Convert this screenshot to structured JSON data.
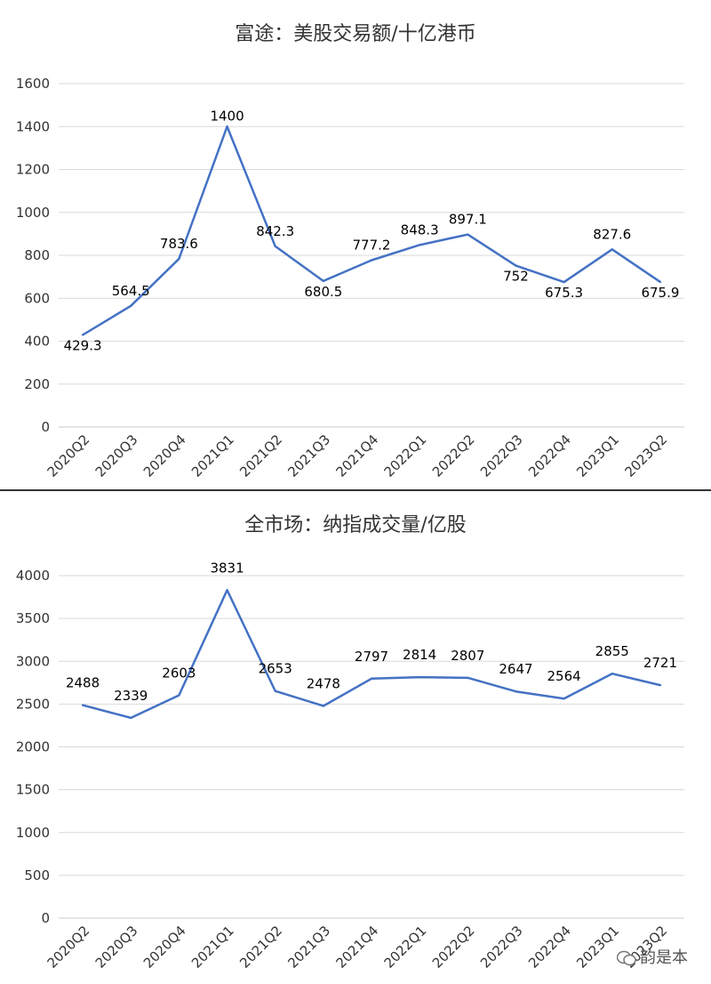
{
  "chart_data": [
    {
      "type": "line",
      "title": "富途：美股交易额/十亿港币",
      "categories": [
        "2020Q2",
        "2020Q3",
        "2020Q4",
        "2021Q1",
        "2021Q2",
        "2021Q3",
        "2021Q4",
        "2022Q1",
        "2022Q2",
        "2022Q3",
        "2022Q4",
        "2023Q1",
        "2023Q2"
      ],
      "series": [
        {
          "values": [
            429.3,
            564.5,
            783.6,
            1400,
            842.3,
            680.5,
            777.2,
            848.3,
            897.1,
            752,
            675.3,
            827.6,
            675.9
          ]
        }
      ],
      "data_labels": [
        "429.3",
        "564.5",
        "783.6",
        "1400",
        "842.3",
        "680.5",
        "777.2",
        "848.3",
        "897.1",
        "752",
        "675.3",
        "827.6",
        "675.9"
      ],
      "yticks": [
        "0",
        "200",
        "400",
        "600",
        "800",
        "1000",
        "1200",
        "1400",
        "1600"
      ],
      "ylim": [
        0,
        1600
      ],
      "grid": true,
      "color": "#4472C4"
    },
    {
      "type": "line",
      "title": "全市场：纳指成交量/亿股",
      "categories": [
        "2020Q2",
        "2020Q3",
        "2020Q4",
        "2021Q1",
        "2021Q2",
        "2021Q3",
        "2021Q4",
        "2022Q1",
        "2022Q2",
        "2022Q3",
        "2022Q4",
        "2023Q1",
        "2023Q2"
      ],
      "series": [
        {
          "values": [
            2488,
            2339,
            2603,
            3831,
            2653,
            2478,
            2797,
            2814,
            2807,
            2647,
            2564,
            2855,
            2721
          ]
        }
      ],
      "data_labels": [
        "2488",
        "2339",
        "2603",
        "3831",
        "2653",
        "2478",
        "2797",
        "2814",
        "2807",
        "2647",
        "2564",
        "2855",
        "2721"
      ],
      "yticks": [
        "0",
        "500",
        "1000",
        "1500",
        "2000",
        "2500",
        "3000",
        "3500",
        "4000"
      ],
      "ylim": [
        0,
        4000
      ],
      "grid": true,
      "color": "#4472C4"
    }
  ],
  "watermark": "韵是本"
}
